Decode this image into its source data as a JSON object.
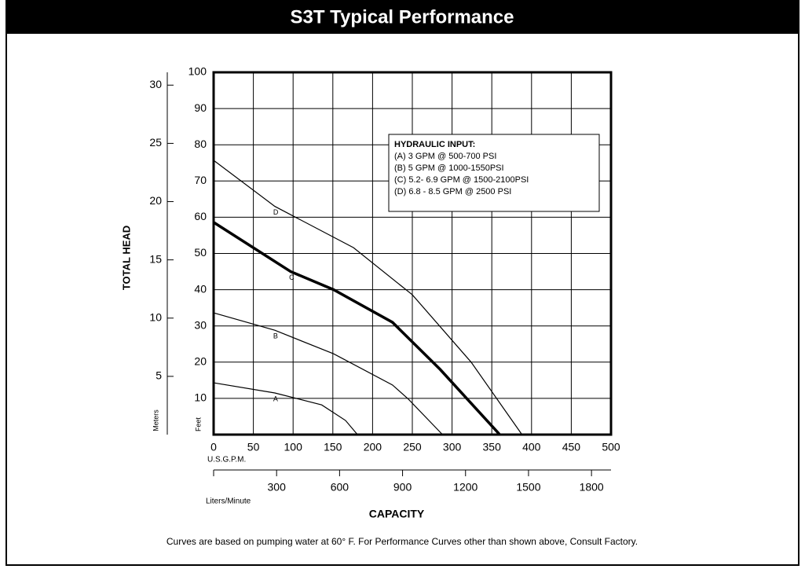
{
  "chart_data": {
    "type": "line",
    "title": "S3T Typical Performance",
    "y_label": "TOTAL HEAD",
    "y_unit": "Feet",
    "y2_unit": "Meters",
    "x_unit": "U.S.G.P.M.",
    "x2_unit": "Liters/Minute",
    "x_label": "CAPACITY",
    "note": "Curves are based on pumping water at 60° F.  For Performance Curves other than shown above, Consult Factory.",
    "legend_title": "HYDRAULIC INPUT:",
    "legend_lines": [
      "(A) 3 GPM @ 500-700 PSI",
      "(B) 5 GPM @ 1000-1550PSI",
      "(C) 5.2- 6.9 GPM @ 1500-2100PSI",
      "(D) 6.8 - 8.5 GPM @ 2500 PSI"
    ],
    "xlim": [
      0,
      500
    ],
    "xticks": [
      0,
      50,
      100,
      150,
      200,
      250,
      300,
      350,
      400,
      450,
      500
    ],
    "ylim": [
      0,
      100
    ],
    "yticks": [
      10,
      20,
      30,
      40,
      50,
      60,
      70,
      80,
      90,
      100
    ],
    "y2lim": [
      0,
      31.1
    ],
    "y2ticks": [
      5,
      10,
      15,
      20,
      25,
      30
    ],
    "x2lim": [
      0,
      1893
    ],
    "x2ticks": [
      300,
      600,
      900,
      1200,
      1500,
      1800
    ],
    "grid": true,
    "series": [
      {
        "name": "A",
        "color": "#000000",
        "width": 1.2,
        "x": [
          0,
          77,
          136,
          166,
          181
        ],
        "values": [
          14.3,
          11.5,
          8.2,
          3.9,
          0
        ]
      },
      {
        "name": "B",
        "color": "#000000",
        "width": 1.2,
        "x": [
          0,
          77,
          151,
          225,
          245,
          288
        ],
        "values": [
          33.6,
          28.8,
          22.3,
          13.7,
          9.8,
          0
        ]
      },
      {
        "name": "C",
        "color": "#000000",
        "width": 3.5,
        "x": [
          0,
          97,
          151,
          225,
          285,
          360
        ],
        "values": [
          58.6,
          45,
          40,
          31,
          18,
          0
        ]
      },
      {
        "name": "D",
        "color": "#000000",
        "width": 1.2,
        "x": [
          0,
          77,
          176,
          250,
          324,
          388
        ],
        "values": [
          75.7,
          63,
          51.6,
          38.6,
          20,
          0
        ]
      }
    ]
  }
}
